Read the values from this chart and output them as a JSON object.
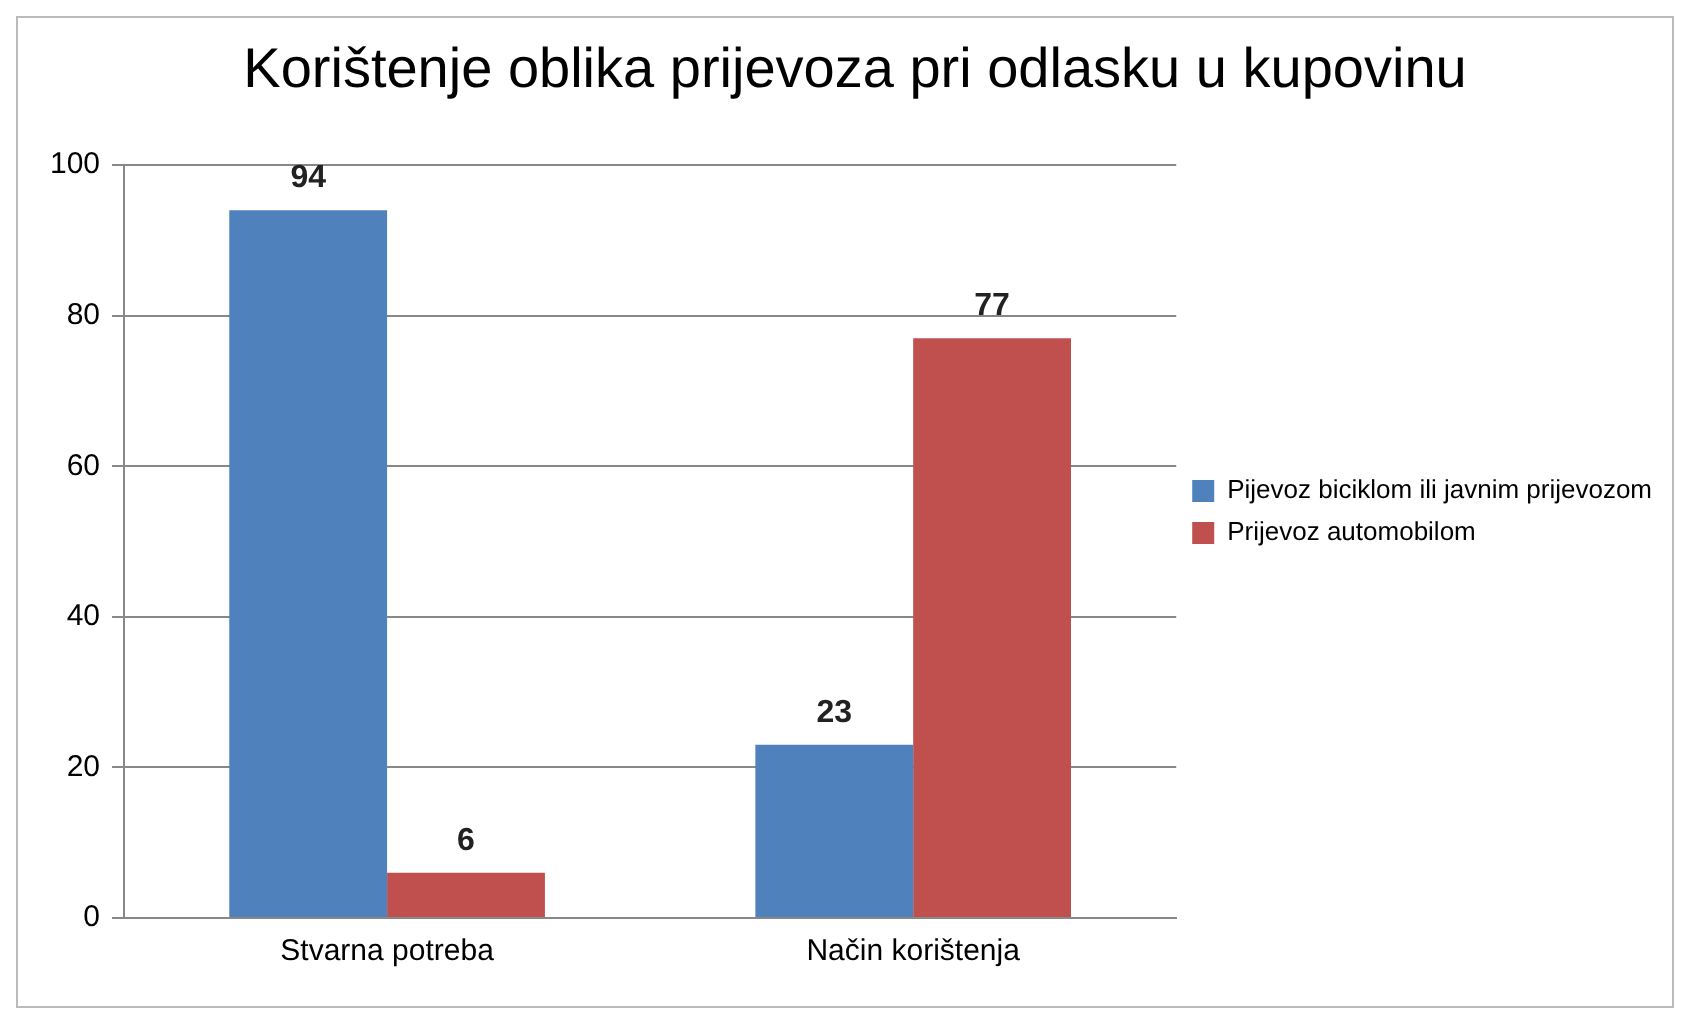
{
  "chart_data": {
    "type": "bar",
    "title": "Korištenje oblika prijevoza pri odlasku u kupovinu",
    "categories": [
      "Stvarna potreba",
      "Način korištenja"
    ],
    "series": [
      {
        "name": "Pijevoz biciklom ili javnim prijevozom",
        "color": "#4f81bd",
        "values": [
          94,
          23
        ]
      },
      {
        "name": "Prijevoz automobilom",
        "color": "#c0504d",
        "values": [
          6,
          77
        ]
      }
    ],
    "ylim": [
      0,
      100
    ],
    "yticks": [
      0,
      20,
      40,
      60,
      80,
      100
    ],
    "grid": "y",
    "legend": "right",
    "data_labels": true
  }
}
